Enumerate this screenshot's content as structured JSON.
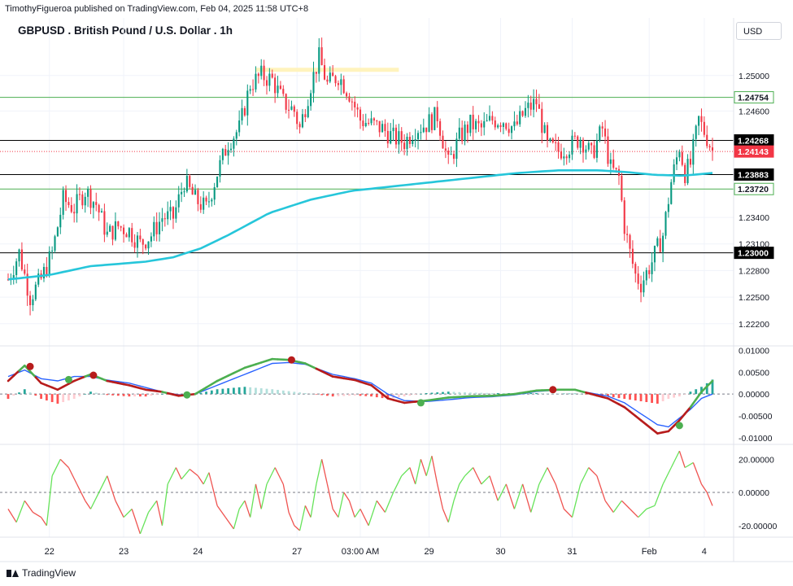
{
  "header": {
    "published_by": "TimothyFigueroa published on TradingView.com, Feb 04, 2025 11:58 UTC+8",
    "title": "GBPUSD . British Pound / U.S. Dollar . 1h",
    "currency_button": "USD",
    "footer_brand": "TradingView"
  },
  "chart_data": [
    {
      "type": "candlestick",
      "title": "GBPUSD . British Pound / U.S. Dollar . 1h",
      "ylim": [
        1.2195,
        1.2565
      ],
      "y_ticks": [
        "1.25000",
        "1.24600",
        "1.23400",
        "1.23100",
        "1.22800",
        "1.22500",
        "1.22200"
      ],
      "x_ticks": [
        "22",
        "23",
        "24",
        "27",
        "03:00 AM",
        "29",
        "30",
        "31",
        "Feb",
        "4"
      ],
      "close_path": [
        [
          0,
          1.227
        ],
        [
          4,
          1.23
        ],
        [
          8,
          1.225
        ],
        [
          12,
          1.227
        ],
        [
          16,
          1.23
        ],
        [
          20,
          1.236
        ],
        [
          24,
          1.235
        ],
        [
          28,
          1.237
        ],
        [
          32,
          1.2355
        ],
        [
          36,
          1.232
        ],
        [
          40,
          1.233
        ],
        [
          44,
          1.2325
        ],
        [
          48,
          1.231
        ],
        [
          52,
          1.232
        ],
        [
          56,
          1.234
        ],
        [
          60,
          1.234
        ],
        [
          64,
          1.238
        ],
        [
          68,
          1.236
        ],
        [
          72,
          1.235
        ],
        [
          76,
          1.239
        ],
        [
          80,
          1.2425
        ],
        [
          84,
          1.244
        ],
        [
          88,
          1.249
        ],
        [
          92,
          1.25
        ],
        [
          96,
          1.2495
        ],
        [
          100,
          1.247
        ],
        [
          104,
          1.246
        ],
        [
          106,
          1.244
        ],
        [
          110,
          1.249
        ],
        [
          113,
          1.252
        ],
        [
          116,
          1.249
        ],
        [
          120,
          1.25
        ],
        [
          124,
          1.248
        ],
        [
          128,
          1.245
        ],
        [
          132,
          1.2445
        ],
        [
          136,
          1.244
        ],
        [
          140,
          1.243
        ],
        [
          144,
          1.2425
        ],
        [
          148,
          1.244
        ],
        [
          152,
          1.2445
        ],
        [
          156,
          1.2455
        ],
        [
          160,
          1.24
        ],
        [
          164,
          1.243
        ],
        [
          168,
          1.2445
        ],
        [
          172,
          1.244
        ],
        [
          176,
          1.245
        ],
        [
          180,
          1.245
        ],
        [
          184,
          1.244
        ],
        [
          188,
          1.246
        ],
        [
          192,
          1.247
        ],
        [
          196,
          1.242
        ],
        [
          200,
          1.2415
        ],
        [
          204,
          1.242
        ],
        [
          208,
          1.243
        ],
        [
          212,
          1.241
        ],
        [
          216,
          1.244
        ],
        [
          219,
          1.2395
        ],
        [
          222,
          1.2385
        ],
        [
          224,
          1.233
        ],
        [
          226,
          1.23
        ],
        [
          228,
          1.2275
        ],
        [
          230,
          1.2265
        ],
        [
          234,
          1.229
        ],
        [
          238,
          1.232
        ],
        [
          241,
          1.238
        ],
        [
          244,
          1.242
        ],
        [
          246,
          1.239
        ],
        [
          248,
          1.24
        ],
        [
          251,
          1.245
        ],
        [
          254,
          1.243
        ],
        [
          256,
          1.2415
        ]
      ],
      "ema_path": [
        [
          0,
          1.227
        ],
        [
          15,
          1.2275
        ],
        [
          30,
          1.2285
        ],
        [
          50,
          1.229
        ],
        [
          60,
          1.2295
        ],
        [
          70,
          1.2305
        ],
        [
          80,
          1.232
        ],
        [
          95,
          1.2345
        ],
        [
          110,
          1.236
        ],
        [
          125,
          1.237
        ],
        [
          140,
          1.2375
        ],
        [
          155,
          1.238
        ],
        [
          170,
          1.2385
        ],
        [
          185,
          1.239
        ],
        [
          200,
          1.2393
        ],
        [
          215,
          1.2393
        ],
        [
          225,
          1.2391
        ],
        [
          235,
          1.2388
        ],
        [
          245,
          1.2387
        ],
        [
          256,
          1.239
        ]
      ],
      "horizontal_levels": [
        {
          "value": 1.24754,
          "label": "1.24754",
          "color": "#4caf50"
        },
        {
          "value": 1.24268,
          "label": "1.24268",
          "color": "#000000"
        },
        {
          "value": 1.24143,
          "label": "1.24143",
          "color": "#f23645",
          "dotted": true
        },
        {
          "value": 1.23883,
          "label": "1.23883",
          "color": "#000000"
        },
        {
          "value": 1.2372,
          "label": "1.23720",
          "color": "#4caf50"
        },
        {
          "value": 1.23,
          "label": "1.23000",
          "color": "#000000"
        }
      ],
      "highlight_zone": {
        "start": 90,
        "end": 142,
        "value": 1.2506,
        "color": "#fff3bd"
      },
      "candle_colors": {
        "up": "#089981",
        "down": "#f23645"
      },
      "ema_color": "#26c6da"
    },
    {
      "type": "line",
      "panel": "MACD",
      "ylim": [
        -0.0115,
        0.011
      ],
      "y_ticks": [
        "0.01000",
        "0.00500",
        "0.00000",
        "-0.00500",
        "-0.01000"
      ],
      "macd_path": [
        [
          0,
          0.003
        ],
        [
          6,
          0.0065
        ],
        [
          12,
          0.0025
        ],
        [
          18,
          0.001
        ],
        [
          24,
          0.003
        ],
        [
          30,
          0.0045
        ],
        [
          36,
          0.003
        ],
        [
          44,
          0.002
        ],
        [
          50,
          0.001
        ],
        [
          56,
          0.0005
        ],
        [
          62,
          -0.0004
        ],
        [
          68,
          0.0
        ],
        [
          76,
          0.003
        ],
        [
          86,
          0.006
        ],
        [
          96,
          0.008
        ],
        [
          102,
          0.0078
        ],
        [
          108,
          0.007
        ],
        [
          118,
          0.004
        ],
        [
          126,
          0.0032
        ],
        [
          132,
          0.002
        ],
        [
          138,
          -0.001
        ],
        [
          144,
          -0.002
        ],
        [
          152,
          -0.0015
        ],
        [
          160,
          -0.0008
        ],
        [
          168,
          -0.0005
        ],
        [
          176,
          -0.0004
        ],
        [
          184,
          0.0
        ],
        [
          192,
          0.0008
        ],
        [
          200,
          0.001
        ],
        [
          206,
          0.001
        ],
        [
          212,
          0.0
        ],
        [
          218,
          -0.001
        ],
        [
          224,
          -0.003
        ],
        [
          230,
          -0.006
        ],
        [
          236,
          -0.009
        ],
        [
          240,
          -0.0085
        ],
        [
          244,
          -0.006
        ],
        [
          248,
          -0.003
        ],
        [
          252,
          0.0005
        ],
        [
          256,
          0.003
        ]
      ],
      "signal_path": [
        [
          0,
          0.004
        ],
        [
          6,
          0.0055
        ],
        [
          12,
          0.0035
        ],
        [
          18,
          0.003
        ],
        [
          24,
          0.004
        ],
        [
          30,
          0.004
        ],
        [
          36,
          0.0032
        ],
        [
          44,
          0.0025
        ],
        [
          50,
          0.0015
        ],
        [
          56,
          0.0005
        ],
        [
          62,
          -0.0002
        ],
        [
          68,
          0.0
        ],
        [
          76,
          0.002
        ],
        [
          86,
          0.0045
        ],
        [
          96,
          0.007
        ],
        [
          102,
          0.0072
        ],
        [
          108,
          0.0068
        ],
        [
          118,
          0.0045
        ],
        [
          126,
          0.0035
        ],
        [
          132,
          0.0025
        ],
        [
          138,
          0.0
        ],
        [
          144,
          -0.0015
        ],
        [
          152,
          -0.0017
        ],
        [
          160,
          -0.0013
        ],
        [
          168,
          -0.0008
        ],
        [
          176,
          -0.0006
        ],
        [
          184,
          -0.0002
        ],
        [
          192,
          0.0006
        ],
        [
          200,
          0.0009
        ],
        [
          206,
          0.0009
        ],
        [
          212,
          0.0002
        ],
        [
          218,
          -0.0005
        ],
        [
          224,
          -0.002
        ],
        [
          230,
          -0.0045
        ],
        [
          236,
          -0.007
        ],
        [
          240,
          -0.0075
        ],
        [
          244,
          -0.0055
        ],
        [
          248,
          -0.0035
        ],
        [
          252,
          -0.001
        ],
        [
          256,
          0.0
        ]
      ],
      "cross_markers": [
        {
          "x": 8,
          "value": 0.0063,
          "color": "#b71c1c"
        },
        {
          "x": 22,
          "value": 0.0033,
          "color": "#4caf50"
        },
        {
          "x": 31,
          "value": 0.0043,
          "color": "#b71c1c"
        },
        {
          "x": 65,
          "value": -0.0002,
          "color": "#4caf50"
        },
        {
          "x": 103,
          "value": 0.0078,
          "color": "#b71c1c"
        },
        {
          "x": 150,
          "value": -0.002,
          "color": "#4caf50"
        },
        {
          "x": 198,
          "value": 0.001,
          "color": "#b71c1c"
        },
        {
          "x": 244,
          "value": -0.0072,
          "color": "#4caf50"
        }
      ]
    },
    {
      "type": "line",
      "panel": "Oscillator",
      "ylim": [
        -27,
        29
      ],
      "y_ticks": [
        "20.00000",
        "0.00000",
        "-20.00000"
      ],
      "osc_path": [
        [
          0,
          -10
        ],
        [
          3,
          -18
        ],
        [
          6,
          -5
        ],
        [
          9,
          -12
        ],
        [
          12,
          -15
        ],
        [
          14,
          -20
        ],
        [
          16,
          10
        ],
        [
          19,
          20
        ],
        [
          22,
          15
        ],
        [
          25,
          5
        ],
        [
          28,
          -5
        ],
        [
          30,
          -10
        ],
        [
          33,
          0
        ],
        [
          36,
          10
        ],
        [
          39,
          -5
        ],
        [
          42,
          -15
        ],
        [
          45,
          -10
        ],
        [
          48,
          -25
        ],
        [
          51,
          -12
        ],
        [
          54,
          -5
        ],
        [
          56,
          -20
        ],
        [
          58,
          5
        ],
        [
          61,
          15
        ],
        [
          63,
          8
        ],
        [
          66,
          14
        ],
        [
          69,
          10
        ],
        [
          71,
          5
        ],
        [
          73,
          12
        ],
        [
          76,
          -8
        ],
        [
          79,
          -15
        ],
        [
          82,
          -22
        ],
        [
          84,
          -10
        ],
        [
          86,
          -5
        ],
        [
          88,
          -15
        ],
        [
          90,
          5
        ],
        [
          92,
          -10
        ],
        [
          94,
          5
        ],
        [
          97,
          15
        ],
        [
          100,
          5
        ],
        [
          102,
          -12
        ],
        [
          104,
          -20
        ],
        [
          106,
          -23
        ],
        [
          108,
          -8
        ],
        [
          110,
          -15
        ],
        [
          112,
          5
        ],
        [
          114,
          20
        ],
        [
          116,
          5
        ],
        [
          118,
          -10
        ],
        [
          120,
          -15
        ],
        [
          122,
          0
        ],
        [
          124,
          -5
        ],
        [
          126,
          -15
        ],
        [
          128,
          -10
        ],
        [
          131,
          -20
        ],
        [
          134,
          -5
        ],
        [
          137,
          -12
        ],
        [
          140,
          0
        ],
        [
          143,
          10
        ],
        [
          146,
          15
        ],
        [
          148,
          5
        ],
        [
          150,
          20
        ],
        [
          152,
          10
        ],
        [
          154,
          22
        ],
        [
          156,
          5
        ],
        [
          158,
          -10
        ],
        [
          160,
          -18
        ],
        [
          162,
          -5
        ],
        [
          164,
          5
        ],
        [
          166,
          10
        ],
        [
          169,
          15
        ],
        [
          172,
          5
        ],
        [
          175,
          10
        ],
        [
          178,
          -5
        ],
        [
          181,
          5
        ],
        [
          184,
          -10
        ],
        [
          187,
          5
        ],
        [
          190,
          -12
        ],
        [
          193,
          5
        ],
        [
          196,
          15
        ],
        [
          199,
          5
        ],
        [
          202,
          -10
        ],
        [
          205,
          -15
        ],
        [
          208,
          5
        ],
        [
          211,
          15
        ],
        [
          214,
          10
        ],
        [
          217,
          -5
        ],
        [
          220,
          -12
        ],
        [
          223,
          -5
        ],
        [
          226,
          -10
        ],
        [
          229,
          -15
        ],
        [
          232,
          -10
        ],
        [
          235,
          -8
        ],
        [
          238,
          5
        ],
        [
          241,
          15
        ],
        [
          244,
          25
        ],
        [
          246,
          15
        ],
        [
          249,
          18
        ],
        [
          252,
          5
        ],
        [
          254,
          0
        ],
        [
          256,
          -8
        ]
      ]
    }
  ]
}
